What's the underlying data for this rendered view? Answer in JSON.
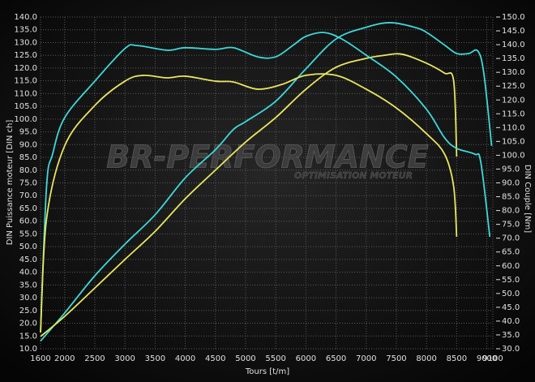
{
  "chart_data": {
    "type": "line",
    "watermark": "BR-PERFORMANCE",
    "watermark_subtitle": "OPTIMISATION MOTEUR",
    "xlabel": "Tours [t/m]",
    "ylabel": "DIN Puissance moteur [DIN ch]",
    "y2label": "DIN Couple [Nm]",
    "xlim": [
      1600,
      9100
    ],
    "xticks": [
      1600,
      2000,
      2500,
      3000,
      3500,
      4000,
      4500,
      5000,
      5500,
      6000,
      6500,
      7000,
      7500,
      8000,
      8500,
      9000,
      9100
    ],
    "ylim": [
      10,
      140
    ],
    "yticks": [
      {
        "value": 10,
        "label": "10.0"
      },
      {
        "value": 15,
        "label": "15.0"
      },
      {
        "value": 20,
        "label": "20.0"
      },
      {
        "value": 25,
        "label": "25.0"
      },
      {
        "value": 30,
        "label": "30.0"
      },
      {
        "value": 35,
        "label": "35.0"
      },
      {
        "value": 40,
        "label": "40.0"
      },
      {
        "value": 45,
        "label": "45.0"
      },
      {
        "value": 50,
        "label": "50.0"
      },
      {
        "value": 55,
        "label": "55.0"
      },
      {
        "value": 60,
        "label": "60.0"
      },
      {
        "value": 65,
        "label": "65.0"
      },
      {
        "value": 70,
        "label": "70.0"
      },
      {
        "value": 75,
        "label": "75.0"
      },
      {
        "value": 80,
        "label": "80.0"
      },
      {
        "value": 85,
        "label": "85.0"
      },
      {
        "value": 90,
        "label": "90.0"
      },
      {
        "value": 95,
        "label": "95.0"
      },
      {
        "value": 100,
        "label": "100.0"
      },
      {
        "value": 105,
        "label": "105.0"
      },
      {
        "value": 110,
        "label": "110.0"
      },
      {
        "value": 115,
        "label": "115.0"
      },
      {
        "value": 120,
        "label": "120.0"
      },
      {
        "value": 125,
        "label": "125.0"
      },
      {
        "value": 130,
        "label": "130.0"
      },
      {
        "value": 135,
        "label": "135.0"
      },
      {
        "value": 140,
        "label": "140.0"
      }
    ],
    "y2lim": [
      30,
      150
    ],
    "y2ticks": [
      {
        "value": 30,
        "label": "30.0"
      },
      {
        "value": 35,
        "label": "35.0"
      },
      {
        "value": 40,
        "label": "40.0"
      },
      {
        "value": 45,
        "label": "45.0"
      },
      {
        "value": 50,
        "label": "50.0"
      },
      {
        "value": 55,
        "label": "55.0"
      },
      {
        "value": 60,
        "label": "60.0"
      },
      {
        "value": 65,
        "label": "65.0"
      },
      {
        "value": 70,
        "label": "70.0"
      },
      {
        "value": 75,
        "label": "75.0"
      },
      {
        "value": 80,
        "label": "80.0"
      },
      {
        "value": 85,
        "label": "85.0"
      },
      {
        "value": 90,
        "label": "90.0"
      },
      {
        "value": 95,
        "label": "95.0"
      },
      {
        "value": 100,
        "label": "100.0"
      },
      {
        "value": 105,
        "label": "105.0"
      },
      {
        "value": 110,
        "label": "110.0"
      },
      {
        "value": 115,
        "label": "115.0"
      },
      {
        "value": 120,
        "label": "120.0"
      },
      {
        "value": 125,
        "label": "125.0"
      },
      {
        "value": 130,
        "label": "130.0"
      },
      {
        "value": 135,
        "label": "135.0"
      },
      {
        "value": 140,
        "label": "140.0"
      },
      {
        "value": 145,
        "label": "145.0"
      },
      {
        "value": 150,
        "label": "150.0"
      }
    ],
    "grid": true,
    "series": [
      {
        "color": "#3fd8d8",
        "x": [
          1600,
          2000,
          2500,
          3000,
          3500,
          4000,
          4500,
          4800,
          5000,
          5500,
          6000,
          6500,
          7000,
          7400,
          7800,
          8000,
          8300,
          8500,
          8700,
          8850,
          8950,
          9080
        ],
        "values": [
          13,
          24,
          38.6,
          51,
          62.5,
          77,
          88,
          96,
          99,
          107,
          119.7,
          131.4,
          136,
          137.8,
          136,
          134,
          129,
          125.7,
          125.7,
          126.7,
          118,
          89.5
        ]
      },
      {
        "color": "#e8e660",
        "x": [
          1600,
          2000,
          2500,
          3000,
          3500,
          4000,
          4500,
          5000,
          5500,
          6000,
          6500,
          7000,
          7300,
          7600,
          8000,
          8300,
          8450,
          8500
        ],
        "values": [
          14.8,
          22.7,
          33.8,
          45,
          56,
          68.8,
          80,
          91,
          100.6,
          111.7,
          120.3,
          123.8,
          125,
          125.4,
          121.9,
          118,
          115,
          85.3
        ]
      },
      {
        "color": "#3fd8d8",
        "axis": "y2",
        "x": [
          1600,
          1700,
          1800,
          2000,
          2500,
          3000,
          3200,
          3700,
          4000,
          4500,
          4800,
          5200,
          5500,
          5800,
          6000,
          6300,
          6600,
          7000,
          7500,
          8000,
          8300,
          8500,
          8800,
          8900,
          9050
        ],
        "values": [
          35.9,
          88.7,
          100.4,
          113.6,
          126.8,
          138.6,
          139.7,
          138,
          138.9,
          138.3,
          138.9,
          135.6,
          135.6,
          140,
          143,
          144.4,
          142,
          136.2,
          128.3,
          116.6,
          106.3,
          102.5,
          100.4,
          97.5,
          70.5
        ]
      },
      {
        "color": "#e8e660",
        "axis": "y2",
        "x": [
          1600,
          1700,
          2000,
          2500,
          3000,
          3300,
          3700,
          4000,
          4500,
          4800,
          5200,
          5600,
          6000,
          6500,
          7000,
          7500,
          8000,
          8300,
          8450,
          8500
        ],
        "values": [
          35.9,
          77,
          103.4,
          118,
          126.8,
          128.9,
          128,
          128.6,
          126.8,
          126.5,
          123.9,
          125.6,
          128.9,
          128.9,
          123.9,
          117.1,
          107.8,
          100.4,
          88.7,
          70.5
        ]
      }
    ]
  }
}
